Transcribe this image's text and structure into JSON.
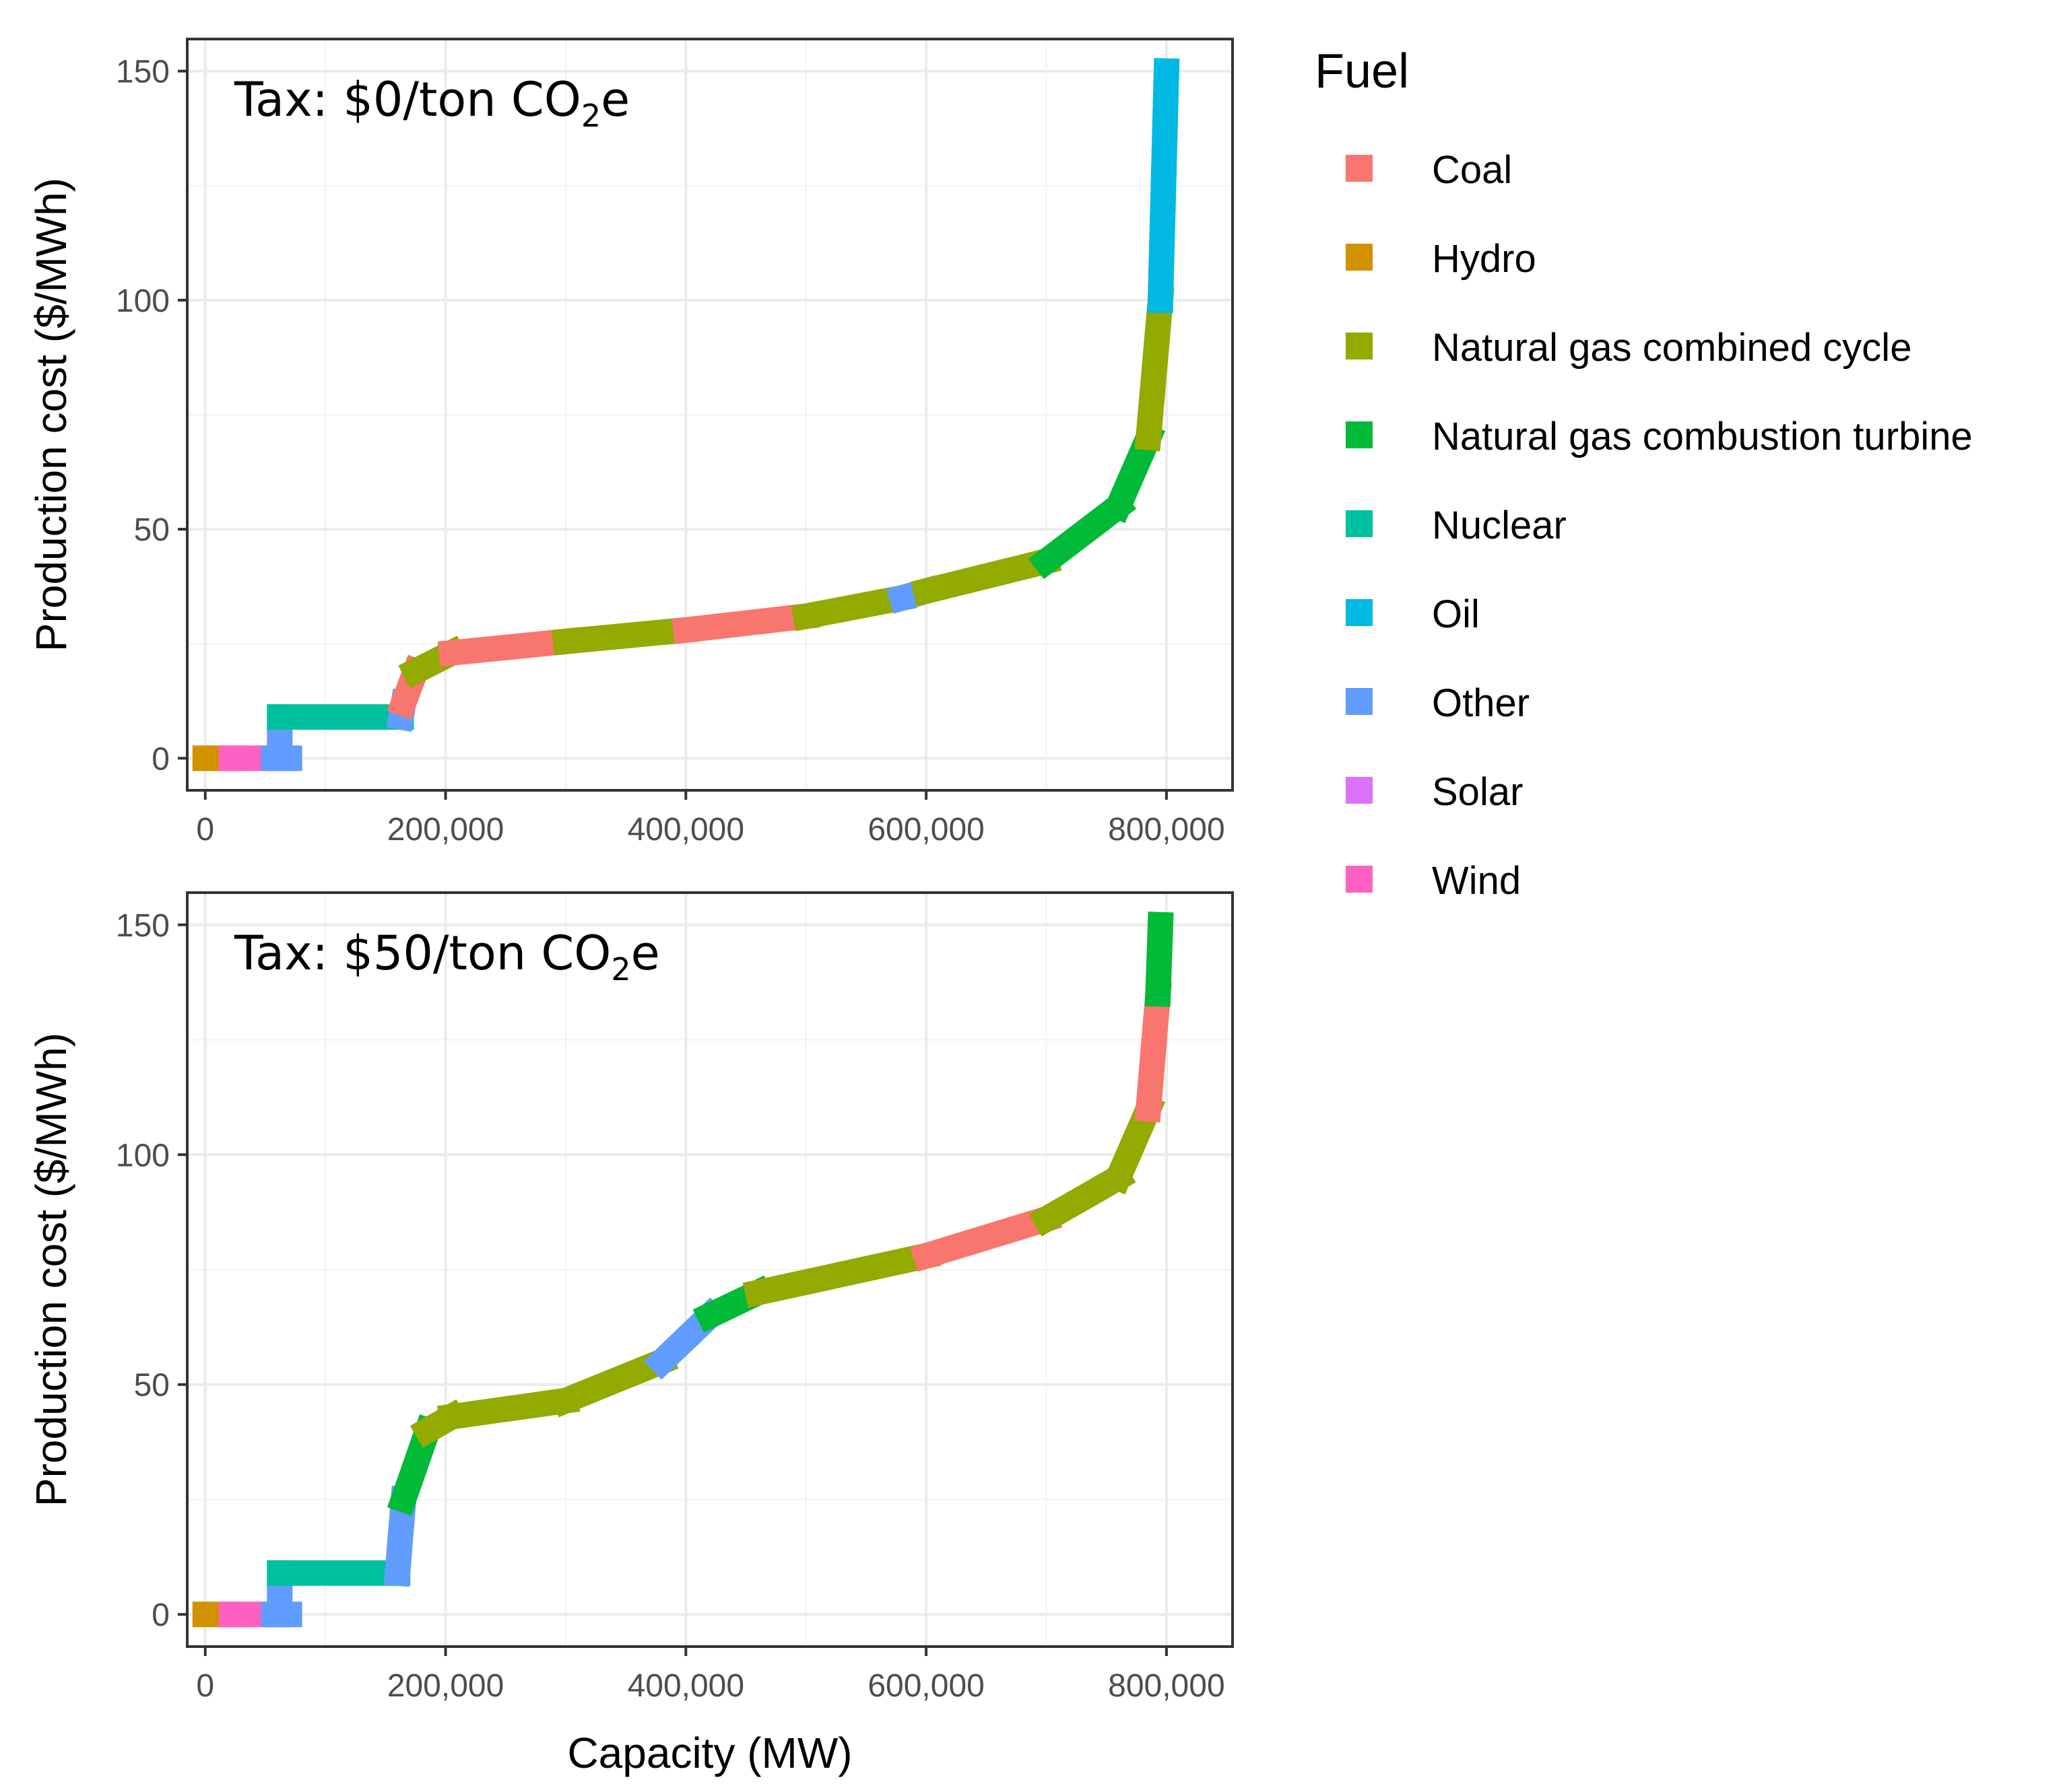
{
  "chart_data": [
    {
      "type": "line",
      "panel_label": {
        "prefix": "Tax: $0/ton CO",
        "sub": "2",
        "suffix": "e"
      },
      "xlabel": "",
      "ylabel": "Production cost ($/MWh)",
      "xlim": [
        -15000,
        855000
      ],
      "ylim": [
        -7,
        157
      ],
      "x_ticks": [
        0,
        200000,
        400000,
        600000,
        800000
      ],
      "x_tick_labels": [
        "0",
        "200,000",
        "400,000",
        "600,000",
        "800,000"
      ],
      "y_ticks": [
        0,
        50,
        100,
        150
      ],
      "y_tick_labels": [
        "0",
        "50",
        "100",
        "150"
      ],
      "grid": true,
      "segments": [
        {
          "fuel": "Hydro",
          "x": [
            0,
            22000
          ],
          "y": [
            0,
            0
          ]
        },
        {
          "fuel": "Wind",
          "x": [
            22000,
            57000
          ],
          "y": [
            0,
            0
          ]
        },
        {
          "fuel": "Other",
          "x": [
            57000,
            70000
          ],
          "y": [
            0,
            0
          ]
        },
        {
          "fuel": "Other",
          "x": [
            62000,
            62000
          ],
          "y": [
            0,
            9
          ]
        },
        {
          "fuel": "Nuclear",
          "x": [
            62000,
            163000
          ],
          "y": [
            9,
            9
          ]
        },
        {
          "fuel": "Other",
          "x": [
            163000,
            165000
          ],
          "y": [
            9,
            12
          ]
        },
        {
          "fuel": "Coal",
          "x": [
            165000,
            175000
          ],
          "y": [
            12,
            19
          ]
        },
        {
          "fuel": "Natural gas combined cycle",
          "x": [
            175000,
            205000
          ],
          "y": [
            19,
            23
          ]
        },
        {
          "fuel": "Coal",
          "x": [
            205000,
            300000
          ],
          "y": [
            23,
            25.5
          ]
        },
        {
          "fuel": "Natural gas combined cycle",
          "x": [
            300000,
            400000
          ],
          "y": [
            25.5,
            28
          ]
        },
        {
          "fuel": "Coal",
          "x": [
            400000,
            500000
          ],
          "y": [
            28,
            31
          ]
        },
        {
          "fuel": "Natural gas combined cycle",
          "x": [
            500000,
            580000
          ],
          "y": [
            31,
            35
          ]
        },
        {
          "fuel": "Other",
          "x": [
            580000,
            600000
          ],
          "y": [
            35,
            36.5
          ]
        },
        {
          "fuel": "Natural gas combined cycle",
          "x": [
            600000,
            700000
          ],
          "y": [
            36.5,
            43
          ]
        },
        {
          "fuel": "Natural gas combustion turbine",
          "x": [
            700000,
            760000
          ],
          "y": [
            43,
            55
          ]
        },
        {
          "fuel": "Natural gas combustion turbine",
          "x": [
            760000,
            785000
          ],
          "y": [
            55,
            70
          ]
        },
        {
          "fuel": "Natural gas combined cycle",
          "x": [
            785000,
            795000
          ],
          "y": [
            70,
            100
          ]
        },
        {
          "fuel": "Oil",
          "x": [
            795000,
            800000
          ],
          "y": [
            100,
            150
          ]
        }
      ]
    },
    {
      "type": "line",
      "panel_label": {
        "prefix": "Tax: $50/ton CO",
        "sub": "2",
        "suffix": "e"
      },
      "xlabel": "Capacity (MW)",
      "ylabel": "Production cost ($/MWh)",
      "xlim": [
        -15000,
        855000
      ],
      "ylim": [
        -7,
        157
      ],
      "x_ticks": [
        0,
        200000,
        400000,
        600000,
        800000
      ],
      "x_tick_labels": [
        "0",
        "200,000",
        "400,000",
        "600,000",
        "800,000"
      ],
      "y_ticks": [
        0,
        50,
        100,
        150
      ],
      "y_tick_labels": [
        "0",
        "50",
        "100",
        "150"
      ],
      "grid": true,
      "segments": [
        {
          "fuel": "Hydro",
          "x": [
            0,
            22000
          ],
          "y": [
            0,
            0
          ]
        },
        {
          "fuel": "Wind",
          "x": [
            22000,
            57000
          ],
          "y": [
            0,
            0
          ]
        },
        {
          "fuel": "Other",
          "x": [
            57000,
            70000
          ],
          "y": [
            0,
            0
          ]
        },
        {
          "fuel": "Other",
          "x": [
            62000,
            62000
          ],
          "y": [
            0,
            9
          ]
        },
        {
          "fuel": "Nuclear",
          "x": [
            62000,
            160000
          ],
          "y": [
            9,
            9
          ]
        },
        {
          "fuel": "Other",
          "x": [
            160000,
            165000
          ],
          "y": [
            9,
            25
          ]
        },
        {
          "fuel": "Natural gas combustion turbine",
          "x": [
            165000,
            185000
          ],
          "y": [
            25,
            40
          ]
        },
        {
          "fuel": "Natural gas combined cycle",
          "x": [
            185000,
            205000
          ],
          "y": [
            40,
            43
          ]
        },
        {
          "fuel": "Natural gas combined cycle",
          "x": [
            205000,
            300000
          ],
          "y": [
            43,
            46.5
          ]
        },
        {
          "fuel": "Natural gas combined cycle",
          "x": [
            300000,
            380000
          ],
          "y": [
            46.5,
            55
          ]
        },
        {
          "fuel": "Other",
          "x": [
            380000,
            420000
          ],
          "y": [
            55,
            65
          ]
        },
        {
          "fuel": "Natural gas combustion turbine",
          "x": [
            420000,
            460000
          ],
          "y": [
            65,
            70
          ]
        },
        {
          "fuel": "Natural gas combined cycle",
          "x": [
            460000,
            600000
          ],
          "y": [
            70,
            78
          ]
        },
        {
          "fuel": "Coal",
          "x": [
            600000,
            700000
          ],
          "y": [
            78,
            86
          ]
        },
        {
          "fuel": "Natural gas combined cycle",
          "x": [
            700000,
            760000
          ],
          "y": [
            86,
            95
          ]
        },
        {
          "fuel": "Natural gas combined cycle",
          "x": [
            760000,
            785000
          ],
          "y": [
            95,
            110
          ]
        },
        {
          "fuel": "Coal",
          "x": [
            785000,
            793000
          ],
          "y": [
            110,
            135
          ]
        },
        {
          "fuel": "Natural gas combustion turbine",
          "x": [
            793000,
            795000
          ],
          "y": [
            135,
            150
          ]
        }
      ]
    }
  ],
  "legend": {
    "title": "Fuel",
    "items": [
      {
        "label": "Coal",
        "color": "#F8766D"
      },
      {
        "label": "Hydro",
        "color": "#D39200"
      },
      {
        "label": "Natural gas combined cycle",
        "color": "#93AA00"
      },
      {
        "label": "Natural gas combustion turbine",
        "color": "#00BA38"
      },
      {
        "label": "Nuclear",
        "color": "#00C19F"
      },
      {
        "label": "Oil",
        "color": "#00B9E3"
      },
      {
        "label": "Other",
        "color": "#619CFF"
      },
      {
        "label": "Solar",
        "color": "#DB72FB"
      },
      {
        "label": "Wind",
        "color": "#FF61C3"
      }
    ]
  }
}
